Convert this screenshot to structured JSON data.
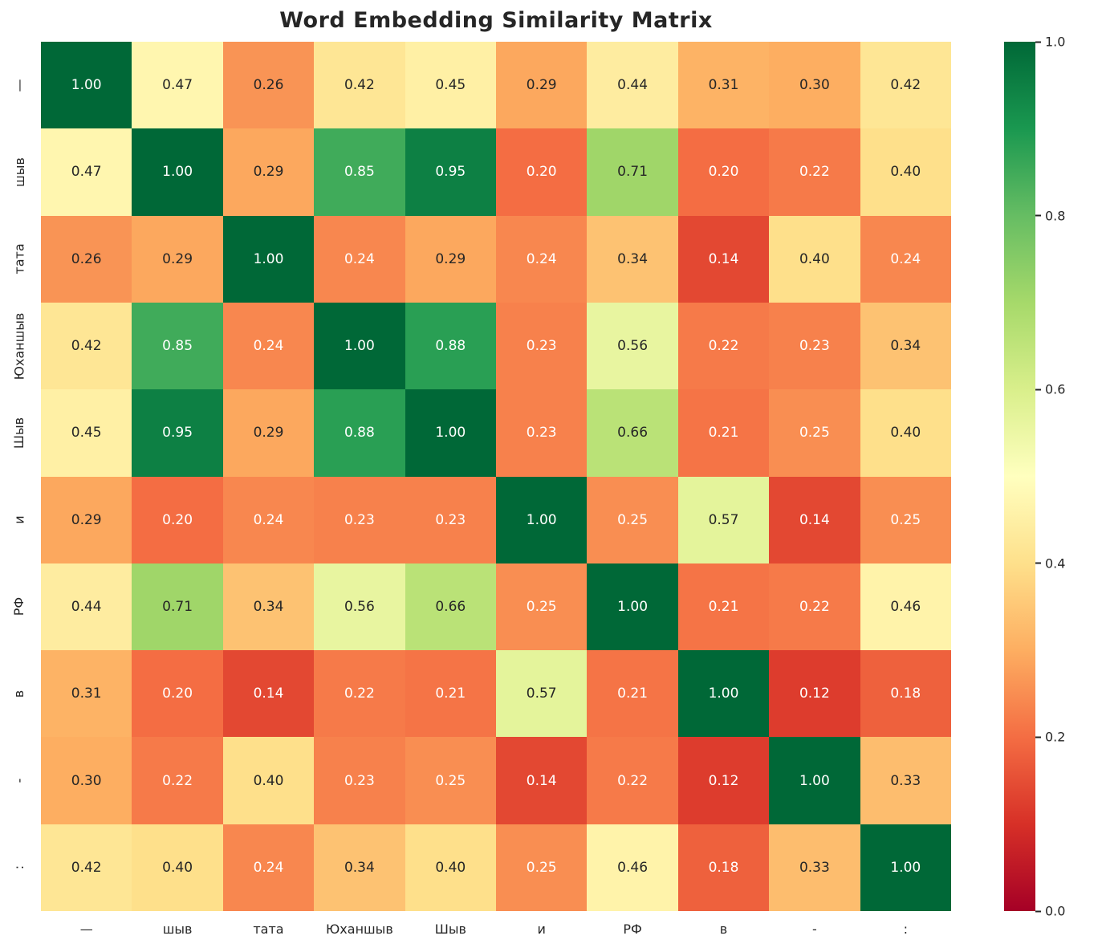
{
  "chart_data": {
    "type": "heatmap",
    "title": "Word Embedding Similarity Matrix",
    "categories": [
      "—",
      "шыв",
      "тата",
      "Юханшыв",
      "Шыв",
      "и",
      "РФ",
      "в",
      "-",
      ":"
    ],
    "matrix": [
      [
        1.0,
        0.47,
        0.26,
        0.42,
        0.45,
        0.29,
        0.44,
        0.31,
        0.3,
        0.42
      ],
      [
        0.47,
        1.0,
        0.29,
        0.85,
        0.95,
        0.2,
        0.71,
        0.2,
        0.22,
        0.4
      ],
      [
        0.26,
        0.29,
        1.0,
        0.24,
        0.29,
        0.24,
        0.34,
        0.14,
        0.4,
        0.24
      ],
      [
        0.42,
        0.85,
        0.24,
        1.0,
        0.88,
        0.23,
        0.56,
        0.22,
        0.23,
        0.34
      ],
      [
        0.45,
        0.95,
        0.29,
        0.88,
        1.0,
        0.23,
        0.66,
        0.21,
        0.25,
        0.4
      ],
      [
        0.29,
        0.2,
        0.24,
        0.23,
        0.23,
        1.0,
        0.25,
        0.57,
        0.14,
        0.25
      ],
      [
        0.44,
        0.71,
        0.34,
        0.56,
        0.66,
        0.25,
        1.0,
        0.21,
        0.22,
        0.46
      ],
      [
        0.31,
        0.2,
        0.14,
        0.22,
        0.21,
        0.57,
        0.21,
        1.0,
        0.12,
        0.18
      ],
      [
        0.3,
        0.22,
        0.4,
        0.23,
        0.25,
        0.14,
        0.22,
        0.12,
        1.0,
        0.33
      ],
      [
        0.42,
        0.4,
        0.24,
        0.34,
        0.4,
        0.25,
        0.46,
        0.18,
        0.33,
        1.0
      ]
    ],
    "value_decimals": 2,
    "colormap": "RdYlGn",
    "colormap_stops": [
      "#a50026",
      "#d73027",
      "#f46d43",
      "#fdae61",
      "#fee08b",
      "#ffffbf",
      "#d9ef8b",
      "#a6d96a",
      "#66bd63",
      "#1a9850",
      "#006837"
    ],
    "colorbar": {
      "min": 0.0,
      "max": 1.0,
      "ticks_top_to_bottom": [
        "1.0",
        "0.8",
        "0.6",
        "0.4",
        "0.2",
        "0.0"
      ]
    },
    "legend_position": "right",
    "grid": false
  },
  "colors": {
    "background": "#ffffff",
    "text_dark": "#262626",
    "text_light": "#ffffff"
  }
}
